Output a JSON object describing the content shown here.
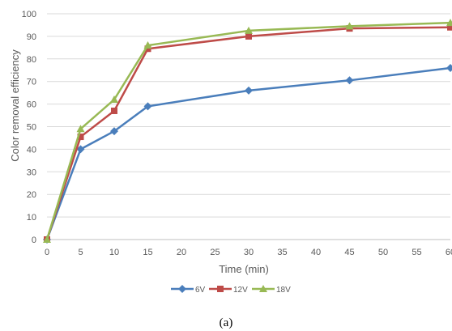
{
  "chart_data": {
    "type": "line",
    "title": "",
    "xlabel": "Time (min)",
    "ylabel": "Color removal efficiency",
    "xlim": [
      0,
      60
    ],
    "ylim": [
      0,
      100
    ],
    "xticks": [
      "0",
      "5",
      "10",
      "15",
      "20",
      "25",
      "30",
      "35",
      "40",
      "45",
      "50",
      "55",
      "60"
    ],
    "yticks": [
      "0",
      "10",
      "20",
      "30",
      "40",
      "50",
      "60",
      "70",
      "80",
      "90",
      "100"
    ],
    "grid": "horizontal",
    "legend_position": "bottom",
    "x": [
      0,
      5,
      10,
      15,
      30,
      45,
      60
    ],
    "series": [
      {
        "name": "6V",
        "color": "#4a7ebb",
        "marker": "diamond",
        "values": [
          0,
          40,
          48,
          59,
          66,
          70.5,
          76
        ]
      },
      {
        "name": "12V",
        "color": "#be4b48",
        "marker": "square",
        "values": [
          0,
          45.5,
          57,
          84.5,
          90,
          93.5,
          94
        ]
      },
      {
        "name": "18V",
        "color": "#98b954",
        "marker": "triangle",
        "values": [
          0,
          49,
          62,
          86,
          92.5,
          94.5,
          96
        ]
      }
    ]
  },
  "caption": "(a)"
}
